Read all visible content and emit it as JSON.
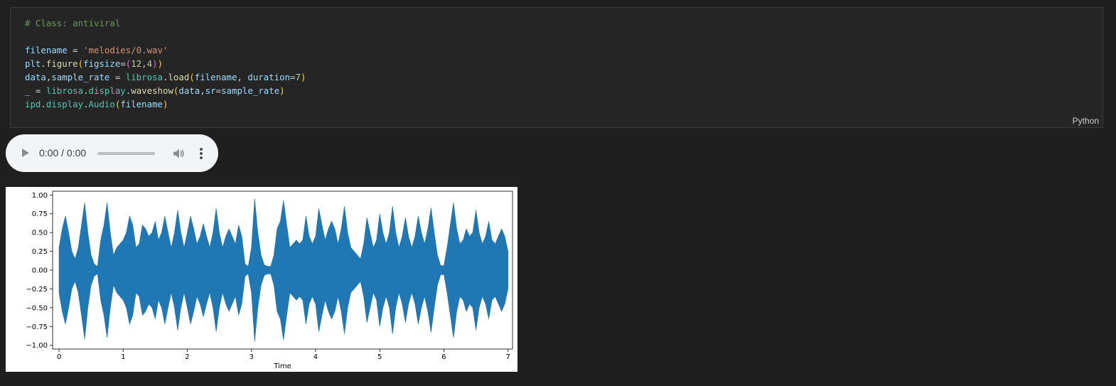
{
  "cell": {
    "language": "Python",
    "code_lines": [
      [
        {
          "t": "# Class: antiviral",
          "c": "comment"
        }
      ],
      [],
      [
        {
          "t": "filename",
          "c": "var"
        },
        {
          "t": " = ",
          "c": "op"
        },
        {
          "t": "'melodies/0.wav'",
          "c": "str"
        }
      ],
      [
        {
          "t": "plt",
          "c": "var"
        },
        {
          "t": ".",
          "c": "op"
        },
        {
          "t": "figure",
          "c": "fn"
        },
        {
          "t": "(",
          "c": "br1"
        },
        {
          "t": "figsize",
          "c": "var"
        },
        {
          "t": "=",
          "c": "op"
        },
        {
          "t": "(",
          "c": "br2"
        },
        {
          "t": "12",
          "c": "num"
        },
        {
          "t": ",",
          "c": "op"
        },
        {
          "t": "4",
          "c": "num"
        },
        {
          "t": ")",
          "c": "br2"
        },
        {
          "t": ")",
          "c": "br1"
        }
      ],
      [
        {
          "t": "data",
          "c": "var"
        },
        {
          "t": ",",
          "c": "op"
        },
        {
          "t": "sample_rate",
          "c": "var"
        },
        {
          "t": " = ",
          "c": "op"
        },
        {
          "t": "librosa",
          "c": "cls"
        },
        {
          "t": ".",
          "c": "op"
        },
        {
          "t": "load",
          "c": "fn"
        },
        {
          "t": "(",
          "c": "br1"
        },
        {
          "t": "filename",
          "c": "var"
        },
        {
          "t": ", ",
          "c": "op"
        },
        {
          "t": "duration",
          "c": "var"
        },
        {
          "t": "=",
          "c": "op"
        },
        {
          "t": "7",
          "c": "num"
        },
        {
          "t": ")",
          "c": "br1"
        }
      ],
      [
        {
          "t": "_",
          "c": "var"
        },
        {
          "t": " = ",
          "c": "op"
        },
        {
          "t": "librosa",
          "c": "cls"
        },
        {
          "t": ".",
          "c": "op"
        },
        {
          "t": "display",
          "c": "cls"
        },
        {
          "t": ".",
          "c": "op"
        },
        {
          "t": "waveshow",
          "c": "fn"
        },
        {
          "t": "(",
          "c": "br1"
        },
        {
          "t": "data",
          "c": "var"
        },
        {
          "t": ",",
          "c": "op"
        },
        {
          "t": "sr",
          "c": "var"
        },
        {
          "t": "=",
          "c": "op"
        },
        {
          "t": "sample_rate",
          "c": "var"
        },
        {
          "t": ")",
          "c": "br1"
        }
      ],
      [
        {
          "t": "ipd",
          "c": "cls"
        },
        {
          "t": ".",
          "c": "op"
        },
        {
          "t": "display",
          "c": "cls"
        },
        {
          "t": ".",
          "c": "op"
        },
        {
          "t": "Audio",
          "c": "cls"
        },
        {
          "t": "(",
          "c": "br1"
        },
        {
          "t": "filename",
          "c": "var"
        },
        {
          "t": ")",
          "c": "br1"
        }
      ]
    ]
  },
  "audio_player": {
    "time_display": "0:00 / 0:00",
    "progress": 0,
    "icons": [
      "play-icon",
      "volume-icon",
      "more-options-icon"
    ]
  },
  "chart_data": {
    "type": "area",
    "title": "",
    "xlabel": "Time",
    "ylabel": "",
    "xlim": [
      -0.1,
      7.07
    ],
    "ylim": [
      -1.05,
      1.05
    ],
    "xticks": [
      0,
      1,
      2,
      3,
      4,
      5,
      6,
      7
    ],
    "xtick_labels": [
      "0",
      "1",
      "2",
      "3",
      "4",
      "5",
      "6",
      "7"
    ],
    "yticks": [
      1.0,
      0.75,
      0.5,
      0.25,
      0.0,
      -0.25,
      -0.5,
      -0.75,
      -1.0
    ],
    "ytick_labels": [
      "1.00",
      "0.75",
      "0.50",
      "0.25",
      "0.00",
      "−0.25",
      "−0.50",
      "−0.75",
      "−1.00"
    ],
    "color": "#1f77b4",
    "grid": false,
    "envelope": {
      "x": [
        0.0,
        0.05,
        0.1,
        0.15,
        0.2,
        0.25,
        0.3,
        0.35,
        0.4,
        0.45,
        0.5,
        0.55,
        0.6,
        0.65,
        0.7,
        0.75,
        0.8,
        0.85,
        0.9,
        0.95,
        1.0,
        1.05,
        1.1,
        1.15,
        1.2,
        1.25,
        1.3,
        1.35,
        1.4,
        1.45,
        1.5,
        1.55,
        1.6,
        1.65,
        1.7,
        1.75,
        1.8,
        1.85,
        1.9,
        1.95,
        2.0,
        2.05,
        2.1,
        2.15,
        2.2,
        2.25,
        2.3,
        2.35,
        2.4,
        2.45,
        2.5,
        2.55,
        2.6,
        2.65,
        2.7,
        2.75,
        2.8,
        2.85,
        2.9,
        2.95,
        3.0,
        3.05,
        3.1,
        3.15,
        3.2,
        3.25,
        3.3,
        3.35,
        3.4,
        3.45,
        3.5,
        3.55,
        3.6,
        3.65,
        3.7,
        3.75,
        3.8,
        3.85,
        3.9,
        3.95,
        4.0,
        4.05,
        4.1,
        4.15,
        4.2,
        4.25,
        4.3,
        4.35,
        4.4,
        4.45,
        4.5,
        4.55,
        4.6,
        4.65,
        4.7,
        4.75,
        4.8,
        4.85,
        4.9,
        4.95,
        5.0,
        5.05,
        5.1,
        5.15,
        5.2,
        5.25,
        5.3,
        5.35,
        5.4,
        5.45,
        5.5,
        5.55,
        5.6,
        5.65,
        5.7,
        5.75,
        5.8,
        5.85,
        5.9,
        5.95,
        6.0,
        6.05,
        6.1,
        6.15,
        6.2,
        6.25,
        6.3,
        6.35,
        6.4,
        6.45,
        6.5,
        6.55,
        6.6,
        6.65,
        6.7,
        6.75,
        6.8,
        6.85,
        6.9,
        6.95,
        7.0
      ],
      "upper": [
        0.3,
        0.55,
        0.72,
        0.5,
        0.25,
        0.15,
        0.3,
        0.6,
        0.9,
        0.5,
        0.2,
        0.08,
        0.05,
        0.4,
        0.6,
        0.9,
        0.5,
        0.2,
        0.3,
        0.35,
        0.4,
        0.5,
        0.72,
        0.6,
        0.3,
        0.35,
        0.6,
        0.55,
        0.45,
        0.5,
        0.65,
        0.4,
        0.5,
        0.72,
        0.5,
        0.3,
        0.5,
        0.8,
        0.5,
        0.3,
        0.5,
        0.72,
        0.55,
        0.35,
        0.45,
        0.62,
        0.45,
        0.3,
        0.5,
        0.82,
        0.5,
        0.3,
        0.45,
        0.55,
        0.45,
        0.35,
        0.6,
        0.45,
        0.08,
        0.05,
        0.3,
        0.95,
        0.5,
        0.2,
        0.07,
        0.05,
        0.05,
        0.2,
        0.55,
        0.65,
        0.93,
        0.6,
        0.3,
        0.35,
        0.4,
        0.35,
        0.4,
        0.72,
        0.45,
        0.35,
        0.45,
        0.82,
        0.6,
        0.4,
        0.55,
        0.65,
        0.55,
        0.35,
        0.55,
        0.85,
        0.5,
        0.3,
        0.25,
        0.2,
        0.15,
        0.35,
        0.7,
        0.5,
        0.3,
        0.4,
        0.75,
        0.5,
        0.35,
        0.5,
        0.85,
        0.5,
        0.3,
        0.45,
        0.7,
        0.45,
        0.3,
        0.45,
        0.72,
        0.5,
        0.35,
        0.55,
        0.83,
        0.5,
        0.2,
        0.06,
        0.06,
        0.3,
        0.6,
        0.9,
        0.55,
        0.35,
        0.4,
        0.55,
        0.45,
        0.5,
        0.8,
        0.5,
        0.35,
        0.45,
        0.65,
        0.4,
        0.35,
        0.45,
        0.55,
        0.45,
        0.25
      ],
      "lower": [
        -0.3,
        -0.55,
        -0.72,
        -0.5,
        -0.25,
        -0.15,
        -0.3,
        -0.6,
        -0.92,
        -0.5,
        -0.2,
        -0.08,
        -0.05,
        -0.4,
        -0.6,
        -0.9,
        -0.5,
        -0.2,
        -0.3,
        -0.35,
        -0.4,
        -0.5,
        -0.72,
        -0.6,
        -0.3,
        -0.35,
        -0.6,
        -0.55,
        -0.45,
        -0.5,
        -0.65,
        -0.4,
        -0.5,
        -0.72,
        -0.5,
        -0.3,
        -0.5,
        -0.8,
        -0.5,
        -0.3,
        -0.5,
        -0.72,
        -0.55,
        -0.35,
        -0.45,
        -0.62,
        -0.45,
        -0.3,
        -0.5,
        -0.82,
        -0.5,
        -0.3,
        -0.45,
        -0.55,
        -0.45,
        -0.35,
        -0.6,
        -0.45,
        -0.08,
        -0.05,
        -0.3,
        -0.95,
        -0.5,
        -0.2,
        -0.07,
        -0.05,
        -0.05,
        -0.2,
        -0.55,
        -0.65,
        -0.93,
        -0.6,
        -0.3,
        -0.35,
        -0.4,
        -0.35,
        -0.4,
        -0.72,
        -0.45,
        -0.35,
        -0.45,
        -0.82,
        -0.6,
        -0.4,
        -0.55,
        -0.65,
        -0.55,
        -0.35,
        -0.55,
        -0.85,
        -0.5,
        -0.3,
        -0.25,
        -0.2,
        -0.15,
        -0.35,
        -0.7,
        -0.5,
        -0.3,
        -0.4,
        -0.75,
        -0.5,
        -0.35,
        -0.5,
        -0.85,
        -0.5,
        -0.3,
        -0.45,
        -0.7,
        -0.45,
        -0.3,
        -0.45,
        -0.72,
        -0.5,
        -0.35,
        -0.55,
        -0.83,
        -0.5,
        -0.2,
        -0.06,
        -0.06,
        -0.3,
        -0.6,
        -0.9,
        -0.55,
        -0.35,
        -0.4,
        -0.55,
        -0.45,
        -0.5,
        -0.8,
        -0.5,
        -0.35,
        -0.45,
        -0.65,
        -0.4,
        -0.35,
        -0.45,
        -0.55,
        -0.45,
        -0.25
      ]
    }
  }
}
